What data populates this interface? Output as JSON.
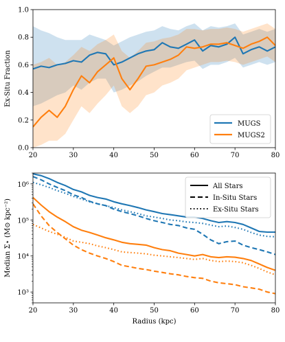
{
  "colors": {
    "mugs": "#1f77b4",
    "mugs2": "#ff7f0e"
  },
  "chart_data": [
    {
      "type": "line",
      "ylabel": "Ex-Situ Fraction",
      "xlim": [
        20,
        80
      ],
      "ylim": [
        0,
        1
      ],
      "xticks": [
        "20",
        "30",
        "40",
        "50",
        "60",
        "70",
        "80"
      ],
      "yticks": [
        "0.0",
        "0.2",
        "0.4",
        "0.6",
        "0.8",
        "1.0"
      ],
      "legend_position": "lower-right",
      "x": [
        20,
        22,
        24,
        26,
        28,
        30,
        32,
        34,
        36,
        38,
        40,
        42,
        44,
        46,
        48,
        50,
        52,
        54,
        56,
        58,
        60,
        62,
        64,
        66,
        68,
        70,
        72,
        74,
        76,
        78,
        80
      ],
      "series": [
        {
          "name": "MUGS",
          "color": "#1f77b4",
          "values": [
            0.57,
            0.59,
            0.58,
            0.6,
            0.61,
            0.63,
            0.62,
            0.67,
            0.69,
            0.68,
            0.6,
            0.62,
            0.65,
            0.68,
            0.7,
            0.71,
            0.76,
            0.73,
            0.72,
            0.75,
            0.78,
            0.7,
            0.74,
            0.73,
            0.75,
            0.8,
            0.68,
            0.71,
            0.73,
            0.7,
            0.73
          ],
          "band_lower": [
            0.3,
            0.32,
            0.35,
            0.38,
            0.4,
            0.45,
            0.42,
            0.47,
            0.5,
            0.5,
            0.4,
            0.42,
            0.45,
            0.48,
            0.52,
            0.55,
            0.58,
            0.58,
            0.6,
            0.62,
            0.63,
            0.57,
            0.6,
            0.6,
            0.62,
            0.65,
            0.58,
            0.6,
            0.62,
            0.6,
            0.62
          ],
          "band_upper": [
            0.88,
            0.85,
            0.83,
            0.8,
            0.78,
            0.78,
            0.78,
            0.82,
            0.8,
            0.78,
            0.74,
            0.77,
            0.8,
            0.82,
            0.84,
            0.85,
            0.88,
            0.86,
            0.85,
            0.88,
            0.9,
            0.85,
            0.88,
            0.87,
            0.88,
            0.9,
            0.82,
            0.84,
            0.86,
            0.84,
            0.86
          ]
        },
        {
          "name": "MUGS2",
          "color": "#ff7f0e",
          "values": [
            0.15,
            0.22,
            0.27,
            0.22,
            0.3,
            0.42,
            0.52,
            0.47,
            0.55,
            0.6,
            0.65,
            0.5,
            0.42,
            0.5,
            0.59,
            0.6,
            0.62,
            0.64,
            0.67,
            0.73,
            0.72,
            0.73,
            0.75,
            0.75,
            0.76,
            0.74,
            0.72,
            0.75,
            0.77,
            0.8,
            0.74
          ],
          "band_lower": [
            0.0,
            0.02,
            0.05,
            0.05,
            0.1,
            0.2,
            0.3,
            0.25,
            0.32,
            0.38,
            0.45,
            0.3,
            0.25,
            0.3,
            0.38,
            0.4,
            0.45,
            0.47,
            0.5,
            0.56,
            0.58,
            0.6,
            0.62,
            0.62,
            0.63,
            0.62,
            0.6,
            0.62,
            0.64,
            0.66,
            0.62
          ],
          "band_upper": [
            0.6,
            0.62,
            0.65,
            0.6,
            0.62,
            0.67,
            0.73,
            0.7,
            0.75,
            0.78,
            0.82,
            0.7,
            0.65,
            0.7,
            0.76,
            0.77,
            0.79,
            0.8,
            0.82,
            0.86,
            0.86,
            0.85,
            0.86,
            0.86,
            0.87,
            0.86,
            0.84,
            0.86,
            0.88,
            0.9,
            0.86
          ]
        }
      ]
    },
    {
      "type": "line",
      "xlabel": "Radius (kpc)",
      "ylabel": "Median Σ⋆ (M⊙ kpc⁻²)",
      "xlim": [
        20,
        80
      ],
      "ylim": [
        500,
        2000000
      ],
      "yscale": "log",
      "xticks": [
        "20",
        "30",
        "40",
        "50",
        "60",
        "70",
        "80"
      ],
      "yticks": [
        {
          "value": 1000,
          "label": "10³"
        },
        {
          "value": 10000,
          "label": "10⁴"
        },
        {
          "value": 100000,
          "label": "10⁵"
        },
        {
          "value": 1000000,
          "label": "10⁶"
        }
      ],
      "legend_position": "top-right",
      "legend": [
        {
          "label": "All Stars",
          "dash": "solid"
        },
        {
          "label": "In-Situ Stars",
          "dash": "dashed"
        },
        {
          "label": "Ex-Situ Stars",
          "dash": "dotted"
        }
      ],
      "x": [
        20,
        22,
        24,
        26,
        28,
        30,
        32,
        34,
        36,
        38,
        40,
        42,
        44,
        46,
        48,
        50,
        52,
        54,
        56,
        58,
        60,
        62,
        64,
        66,
        68,
        70,
        72,
        74,
        76,
        78,
        80
      ],
      "series": [
        {
          "color": "#1f77b4",
          "dash": "solid",
          "values": [
            1900000,
            1700000,
            1400000,
            1100000,
            900000,
            700000,
            600000,
            480000,
            420000,
            380000,
            320000,
            280000,
            250000,
            220000,
            190000,
            170000,
            150000,
            140000,
            130000,
            120000,
            120000,
            110000,
            95000,
            85000,
            90000,
            85000,
            75000,
            60000,
            48000,
            46000,
            46000
          ]
        },
        {
          "color": "#1f77b4",
          "dash": "dashed",
          "values": [
            1600000,
            1300000,
            1000000,
            800000,
            650000,
            500000,
            420000,
            330000,
            280000,
            250000,
            200000,
            170000,
            150000,
            130000,
            110000,
            95000,
            85000,
            75000,
            70000,
            60000,
            55000,
            40000,
            28000,
            22000,
            25000,
            26000,
            20000,
            17000,
            15000,
            13000,
            11000
          ]
        },
        {
          "color": "#1f77b4",
          "dash": "dotted",
          "values": [
            1100000,
            950000,
            800000,
            650000,
            550000,
            450000,
            380000,
            320000,
            280000,
            250000,
            220000,
            190000,
            170000,
            150000,
            130000,
            120000,
            110000,
            100000,
            95000,
            88000,
            85000,
            80000,
            72000,
            65000,
            68000,
            62000,
            55000,
            45000,
            38000,
            35000,
            34000
          ]
        },
        {
          "color": "#ff7f0e",
          "dash": "solid",
          "values": [
            420000,
            260000,
            170000,
            120000,
            90000,
            65000,
            52000,
            45000,
            38000,
            32000,
            28000,
            24000,
            22000,
            21000,
            20000,
            17000,
            15000,
            14000,
            12000,
            11000,
            10000,
            11000,
            9500,
            9000,
            9500,
            9200,
            8500,
            7500,
            6000,
            4800,
            4000
          ]
        },
        {
          "color": "#ff7f0e",
          "dash": "dashed",
          "values": [
            280000,
            130000,
            70000,
            45000,
            30000,
            20000,
            15000,
            12000,
            10000,
            8500,
            7000,
            5500,
            5000,
            4500,
            4200,
            3800,
            3500,
            3200,
            3000,
            2700,
            2500,
            2400,
            2000,
            1800,
            1700,
            1600,
            1400,
            1300,
            1200,
            1000,
            900
          ]
        },
        {
          "color": "#ff7f0e",
          "dash": "dotted",
          "values": [
            75000,
            60000,
            48000,
            40000,
            33000,
            26000,
            24000,
            22000,
            19000,
            17000,
            15000,
            13000,
            12500,
            12000,
            11500,
            10500,
            10000,
            9500,
            9000,
            8500,
            8000,
            8500,
            7500,
            7000,
            7200,
            7000,
            6500,
            5500,
            4500,
            3600,
            3000
          ]
        }
      ]
    }
  ]
}
